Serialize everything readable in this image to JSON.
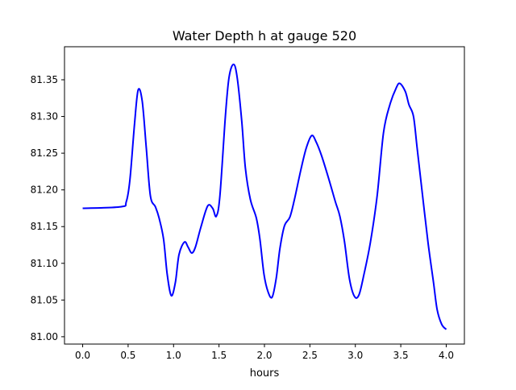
{
  "chart_data": {
    "type": "line",
    "title": "Water Depth h at gauge 520",
    "xlabel": "hours",
    "ylabel": "",
    "xlim": [
      -0.2,
      4.2
    ],
    "ylim": [
      80.99,
      81.395
    ],
    "xticks": [
      0.0,
      0.5,
      1.0,
      1.5,
      2.0,
      2.5,
      3.0,
      3.5,
      4.0
    ],
    "xtick_labels": [
      "0.0",
      "0.5",
      "1.0",
      "1.5",
      "2.0",
      "2.5",
      "3.0",
      "3.5",
      "4.0"
    ],
    "yticks": [
      81.0,
      81.05,
      81.1,
      81.15,
      81.2,
      81.25,
      81.3,
      81.35
    ],
    "ytick_labels": [
      "81.00",
      "81.05",
      "81.10",
      "81.15",
      "81.20",
      "81.25",
      "81.30",
      "81.35"
    ],
    "grid": false,
    "series": [
      {
        "name": "h",
        "color": "#0000ff",
        "x": [
          0,
          0.42,
          0.48,
          0.52,
          0.57,
          0.61,
          0.655,
          0.7,
          0.745,
          0.8,
          0.84,
          0.89,
          0.93,
          0.975,
          1.02,
          1.06,
          1.12,
          1.16,
          1.2,
          1.24,
          1.3,
          1.375,
          1.43,
          1.47,
          1.51,
          1.57,
          1.61,
          1.66,
          1.7,
          1.75,
          1.79,
          1.845,
          1.91,
          1.95,
          1.995,
          2.04,
          2.085,
          2.13,
          2.17,
          2.22,
          2.28,
          2.33,
          2.4,
          2.46,
          2.52,
          2.57,
          2.63,
          2.71,
          2.78,
          2.83,
          2.88,
          2.935,
          2.99,
          3.04,
          3.095,
          3.165,
          3.24,
          3.31,
          3.38,
          3.45,
          3.49,
          3.55,
          3.59,
          3.64,
          3.68,
          3.74,
          3.8,
          3.86,
          3.9,
          3.95,
          4.0
        ],
        "y": [
          81.175,
          81.177,
          81.184,
          81.214,
          81.289,
          81.336,
          81.321,
          81.257,
          81.192,
          81.177,
          81.162,
          81.133,
          81.085,
          81.056,
          81.074,
          81.112,
          81.129,
          81.122,
          81.114,
          81.122,
          81.149,
          81.178,
          81.175,
          81.164,
          81.192,
          81.3,
          81.353,
          81.371,
          81.353,
          81.294,
          81.23,
          81.187,
          81.162,
          81.133,
          81.085,
          81.061,
          81.054,
          81.08,
          81.12,
          81.151,
          81.163,
          81.187,
          81.227,
          81.257,
          81.274,
          81.265,
          81.246,
          81.214,
          81.184,
          81.164,
          81.13,
          81.079,
          81.055,
          81.057,
          81.085,
          81.128,
          81.192,
          81.278,
          81.316,
          81.339,
          81.345,
          81.334,
          81.316,
          81.3,
          81.257,
          81.192,
          81.128,
          81.074,
          81.037,
          81.017,
          81.01
        ]
      }
    ]
  }
}
